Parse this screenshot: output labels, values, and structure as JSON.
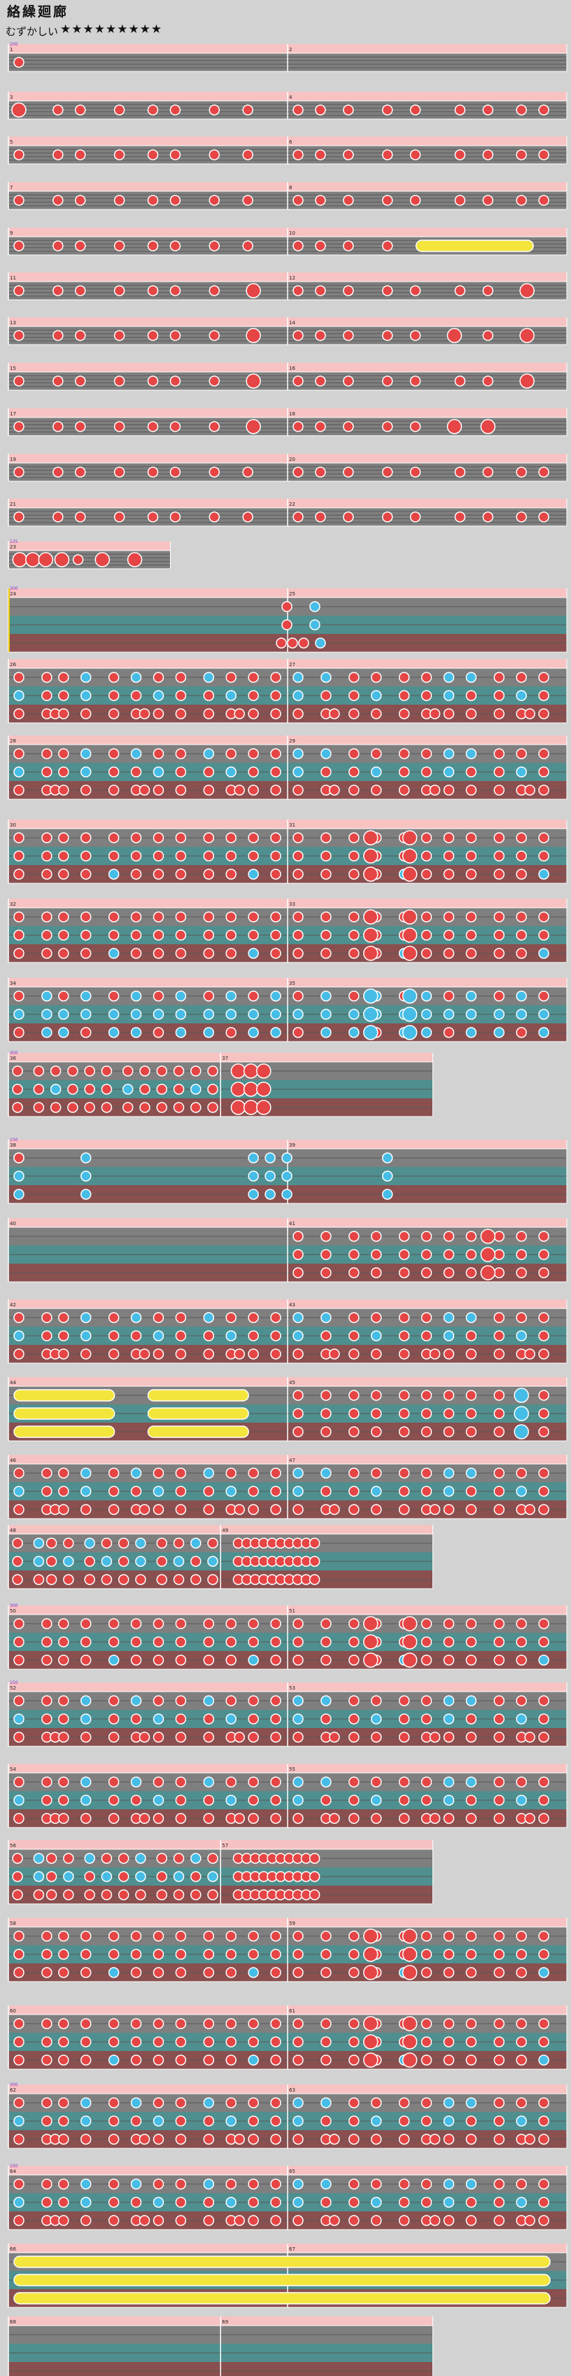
{
  "header": {
    "title": "絡繰廻廊",
    "difficulty_label": "むずかしい",
    "difficulty_stars": "★★★★★★★★★"
  },
  "colors": {
    "page_background": "#d2d2d2",
    "lane_background": "#7f7f7f",
    "lane_divider": "#5a5a5a",
    "pink_band": "#f7c2c2",
    "teal_band": "#4f8f8f",
    "maroon_band": "#8a4f4f",
    "barline": "#ffffff",
    "don_note": "#e64545",
    "ka_note": "#45bde6",
    "drumroll": "#f3e53c",
    "bpm_text": "#8a32c8",
    "gogo_marker": "#e8c800"
  },
  "chart_data": {
    "type": "table",
    "bpm_markers": [
      {
        "row": 0,
        "text": "200"
      },
      {
        "row": 11,
        "text": "125"
      },
      {
        "row": 12,
        "text": "300"
      },
      {
        "row": 18,
        "text": "300"
      },
      {
        "row": 19,
        "text": "150"
      },
      {
        "row": 25,
        "text": "300"
      },
      {
        "row": 26,
        "text": "150"
      },
      {
        "row": 31,
        "text": "300"
      },
      {
        "row": 32,
        "text": "150"
      }
    ],
    "rows": [
      {
        "lanes": 1,
        "measures": [
          "1",
          "2"
        ],
        "notes": [
          [
            0,
            0.01,
            "d"
          ]
        ]
      },
      {
        "lanes": 1,
        "measures": [
          "3",
          "4"
        ],
        "notes": [
          [
            0,
            0.01,
            "D"
          ],
          [
            0,
            0.08,
            "d"
          ],
          [
            0,
            0.12,
            "d"
          ],
          [
            0,
            0.19,
            "d"
          ],
          [
            0,
            0.25,
            "d"
          ],
          [
            0,
            0.29,
            "d"
          ],
          [
            0,
            0.36,
            "d"
          ],
          [
            0,
            0.42,
            "d"
          ],
          [
            0,
            0.51,
            "d"
          ],
          [
            0,
            0.55,
            "d"
          ],
          [
            0,
            0.6,
            "d"
          ],
          [
            0,
            0.67,
            "d"
          ],
          [
            0,
            0.72,
            "d"
          ],
          [
            0,
            0.8,
            "d"
          ],
          [
            0,
            0.85,
            "d"
          ],
          [
            0,
            0.91,
            "d"
          ],
          [
            0,
            0.95,
            "d"
          ]
        ]
      },
      {
        "lanes": 1,
        "measures": [
          "5",
          "6"
        ],
        "notes": [
          [
            0,
            0.01,
            "d"
          ],
          [
            0,
            0.08,
            "d"
          ],
          [
            0,
            0.12,
            "d"
          ],
          [
            0,
            0.19,
            "d"
          ],
          [
            0,
            0.25,
            "d"
          ],
          [
            0,
            0.29,
            "d"
          ],
          [
            0,
            0.36,
            "d"
          ],
          [
            0,
            0.42,
            "d"
          ],
          [
            0,
            0.51,
            "d"
          ],
          [
            0,
            0.55,
            "d"
          ],
          [
            0,
            0.6,
            "d"
          ],
          [
            0,
            0.67,
            "d"
          ],
          [
            0,
            0.72,
            "d"
          ],
          [
            0,
            0.8,
            "d"
          ],
          [
            0,
            0.85,
            "d"
          ],
          [
            0,
            0.91,
            "d"
          ],
          [
            0,
            0.95,
            "d"
          ]
        ]
      },
      {
        "lanes": 1,
        "measures": [
          "7",
          "8"
        ],
        "notes": [
          [
            0,
            0.01,
            "d"
          ],
          [
            0,
            0.08,
            "d"
          ],
          [
            0,
            0.12,
            "d"
          ],
          [
            0,
            0.19,
            "d"
          ],
          [
            0,
            0.25,
            "d"
          ],
          [
            0,
            0.29,
            "d"
          ],
          [
            0,
            0.36,
            "d"
          ],
          [
            0,
            0.42,
            "d"
          ],
          [
            0,
            0.51,
            "d"
          ],
          [
            0,
            0.55,
            "d"
          ],
          [
            0,
            0.6,
            "d"
          ],
          [
            0,
            0.67,
            "d"
          ],
          [
            0,
            0.72,
            "d"
          ],
          [
            0,
            0.8,
            "d"
          ],
          [
            0,
            0.85,
            "d"
          ],
          [
            0,
            0.91,
            "d"
          ],
          [
            0,
            0.95,
            "d"
          ]
        ]
      },
      {
        "lanes": 1,
        "measures": [
          "9",
          "10"
        ],
        "notes": [
          [
            0,
            0.01,
            "d"
          ],
          [
            0,
            0.08,
            "d"
          ],
          [
            0,
            0.12,
            "d"
          ],
          [
            0,
            0.19,
            "d"
          ],
          [
            0,
            0.25,
            "d"
          ],
          [
            0,
            0.29,
            "d"
          ],
          [
            0,
            0.36,
            "d"
          ],
          [
            0,
            0.42,
            "d"
          ],
          [
            0,
            0.51,
            "d"
          ],
          [
            0,
            0.55,
            "d"
          ],
          [
            0,
            0.6,
            "d"
          ],
          [
            0,
            0.67,
            "d"
          ],
          [
            "r",
            0,
            0.73,
            0.94
          ]
        ]
      },
      {
        "lanes": 1,
        "measures": [
          "11",
          "12"
        ],
        "notes": [
          [
            0,
            0.01,
            "d"
          ],
          [
            0,
            0.08,
            "d"
          ],
          [
            0,
            0.12,
            "d"
          ],
          [
            0,
            0.19,
            "d"
          ],
          [
            0,
            0.25,
            "d"
          ],
          [
            0,
            0.29,
            "d"
          ],
          [
            0,
            0.36,
            "d"
          ],
          [
            0,
            0.43,
            "D"
          ],
          [
            0,
            0.51,
            "d"
          ],
          [
            0,
            0.55,
            "d"
          ],
          [
            0,
            0.6,
            "d"
          ],
          [
            0,
            0.67,
            "d"
          ],
          [
            0,
            0.72,
            "d"
          ],
          [
            0,
            0.8,
            "d"
          ],
          [
            0,
            0.85,
            "d"
          ],
          [
            0,
            0.92,
            "D"
          ]
        ]
      },
      {
        "lanes": 1,
        "measures": [
          "13",
          "14"
        ],
        "notes": [
          [
            0,
            0.01,
            "d"
          ],
          [
            0,
            0.08,
            "d"
          ],
          [
            0,
            0.12,
            "d"
          ],
          [
            0,
            0.19,
            "d"
          ],
          [
            0,
            0.25,
            "d"
          ],
          [
            0,
            0.29,
            "d"
          ],
          [
            0,
            0.36,
            "d"
          ],
          [
            0,
            0.43,
            "D"
          ],
          [
            0,
            0.51,
            "d"
          ],
          [
            0,
            0.55,
            "d"
          ],
          [
            0,
            0.6,
            "d"
          ],
          [
            0,
            0.67,
            "d"
          ],
          [
            0,
            0.72,
            "d"
          ],
          [
            0,
            0.79,
            "D"
          ],
          [
            0,
            0.85,
            "d"
          ],
          [
            0,
            0.92,
            "D"
          ]
        ]
      },
      {
        "lanes": 1,
        "measures": [
          "15",
          "16"
        ],
        "notes": [
          [
            0,
            0.01,
            "d"
          ],
          [
            0,
            0.08,
            "d"
          ],
          [
            0,
            0.12,
            "d"
          ],
          [
            0,
            0.19,
            "d"
          ],
          [
            0,
            0.25,
            "d"
          ],
          [
            0,
            0.29,
            "d"
          ],
          [
            0,
            0.36,
            "d"
          ],
          [
            0,
            0.43,
            "D"
          ],
          [
            0,
            0.51,
            "d"
          ],
          [
            0,
            0.55,
            "d"
          ],
          [
            0,
            0.6,
            "d"
          ],
          [
            0,
            0.67,
            "d"
          ],
          [
            0,
            0.72,
            "d"
          ],
          [
            0,
            0.8,
            "d"
          ],
          [
            0,
            0.85,
            "d"
          ],
          [
            0,
            0.92,
            "D"
          ]
        ]
      },
      {
        "lanes": 1,
        "measures": [
          "17",
          "18"
        ],
        "notes": [
          [
            0,
            0.01,
            "d"
          ],
          [
            0,
            0.08,
            "d"
          ],
          [
            0,
            0.12,
            "d"
          ],
          [
            0,
            0.19,
            "d"
          ],
          [
            0,
            0.25,
            "d"
          ],
          [
            0,
            0.29,
            "d"
          ],
          [
            0,
            0.36,
            "d"
          ],
          [
            0,
            0.43,
            "D"
          ],
          [
            0,
            0.51,
            "d"
          ],
          [
            0,
            0.55,
            "d"
          ],
          [
            0,
            0.6,
            "d"
          ],
          [
            0,
            0.67,
            "d"
          ],
          [
            0,
            0.72,
            "d"
          ],
          [
            0,
            0.79,
            "D"
          ],
          [
            0,
            0.85,
            "D"
          ]
        ]
      },
      {
        "lanes": 1,
        "measures": [
          "19",
          "20"
        ],
        "notes": [
          [
            0,
            0.01,
            "d"
          ],
          [
            0,
            0.08,
            "d"
          ],
          [
            0,
            0.12,
            "d"
          ],
          [
            0,
            0.19,
            "d"
          ],
          [
            0,
            0.25,
            "d"
          ],
          [
            0,
            0.29,
            "d"
          ],
          [
            0,
            0.36,
            "d"
          ],
          [
            0,
            0.42,
            "d"
          ],
          [
            0,
            0.51,
            "d"
          ],
          [
            0,
            0.55,
            "d"
          ],
          [
            0,
            0.6,
            "d"
          ],
          [
            0,
            0.67,
            "d"
          ],
          [
            0,
            0.72,
            "d"
          ],
          [
            0,
            0.8,
            "d"
          ],
          [
            0,
            0.85,
            "d"
          ],
          [
            0,
            0.91,
            "d"
          ],
          [
            0,
            0.95,
            "d"
          ]
        ]
      },
      {
        "lanes": 1,
        "measures": [
          "21",
          "22"
        ],
        "notes": [
          [
            0,
            0.01,
            "d"
          ],
          [
            0,
            0.08,
            "d"
          ],
          [
            0,
            0.12,
            "d"
          ],
          [
            0,
            0.19,
            "d"
          ],
          [
            0,
            0.25,
            "d"
          ],
          [
            0,
            0.29,
            "d"
          ],
          [
            0,
            0.36,
            "d"
          ],
          [
            0,
            0.42,
            "d"
          ],
          [
            0,
            0.51,
            "d"
          ],
          [
            0,
            0.55,
            "d"
          ],
          [
            0,
            0.6,
            "d"
          ],
          [
            0,
            0.67,
            "d"
          ],
          [
            0,
            0.72,
            "d"
          ],
          [
            0,
            0.8,
            "d"
          ],
          [
            0,
            0.85,
            "d"
          ],
          [
            0,
            0.91,
            "d"
          ],
          [
            0,
            0.95,
            "d"
          ]
        ]
      },
      {
        "lanes": 1,
        "width": 0.29,
        "measures": [
          "23"
        ],
        "notes": [
          [
            0,
            0.04,
            "D"
          ],
          [
            0,
            0.12,
            "D"
          ],
          [
            0,
            0.2,
            "D"
          ],
          [
            0,
            0.3,
            "D"
          ],
          [
            0,
            0.4,
            "d"
          ],
          [
            0,
            0.55,
            "D"
          ],
          [
            0,
            0.75,
            "D"
          ]
        ]
      },
      {
        "lanes": 3,
        "measures": [
          "24",
          "25"
        ],
        "gogo": true,
        "notes": [
          [
            0,
            0.49,
            "d"
          ],
          [
            0,
            0.54,
            "k"
          ],
          [
            1,
            0.49,
            "d"
          ],
          [
            1,
            0.54,
            "k"
          ],
          [
            2,
            0.48,
            "d"
          ],
          [
            2,
            0.5,
            "d"
          ],
          [
            2,
            0.52,
            "d"
          ],
          [
            2,
            0.55,
            "k"
          ]
        ]
      },
      {
        "lanes": 3,
        "measures": [
          "26",
          "27"
        ],
        "pattern": "A"
      },
      {
        "lanes": 3,
        "measures": [
          "28",
          "29"
        ],
        "pattern": "A"
      },
      {
        "lanes": 3,
        "measures": [
          "30",
          "31"
        ],
        "pattern": "B"
      },
      {
        "lanes": 3,
        "measures": [
          "32",
          "33"
        ],
        "pattern": "B"
      },
      {
        "lanes": 3,
        "measures": [
          "34",
          "35"
        ],
        "pattern": "C"
      },
      {
        "lanes": 3,
        "width": 0.76,
        "measures": [
          "36",
          "37"
        ],
        "pattern": "D"
      },
      {
        "lanes": 3,
        "measures": [
          "38",
          "39"
        ],
        "pattern": "E"
      },
      {
        "lanes": 3,
        "measures": [
          "40",
          "41"
        ],
        "pattern": "F"
      },
      {
        "lanes": 3,
        "measures": [
          "42",
          "43"
        ],
        "pattern": "A"
      },
      {
        "lanes": 3,
        "measures": [
          "44",
          "45"
        ],
        "pattern": "G"
      },
      {
        "lanes": 3,
        "measures": [
          "46",
          "47"
        ],
        "pattern": "A"
      },
      {
        "lanes": 3,
        "width": 0.76,
        "measures": [
          "48",
          "49"
        ],
        "pattern": "H"
      },
      {
        "lanes": 3,
        "measures": [
          "50",
          "51"
        ],
        "pattern": "B"
      },
      {
        "lanes": 3,
        "measures": [
          "52",
          "53"
        ],
        "pattern": "A"
      },
      {
        "lanes": 3,
        "measures": [
          "54",
          "55"
        ],
        "pattern": "A"
      },
      {
        "lanes": 3,
        "width": 0.76,
        "measures": [
          "56",
          "57"
        ],
        "pattern": "H"
      },
      {
        "lanes": 3,
        "measures": [
          "58",
          "59"
        ],
        "pattern": "B"
      },
      {
        "lanes": 3,
        "measures": [
          "60",
          "61"
        ],
        "pattern": "B"
      },
      {
        "lanes": 3,
        "measures": [
          "62",
          "63"
        ],
        "pattern": "A"
      },
      {
        "lanes": 3,
        "measures": [
          "64",
          "65"
        ],
        "pattern": "A"
      },
      {
        "lanes": 3,
        "measures": [
          "66",
          "67"
        ],
        "notes": [
          [
            "r",
            0,
            0.01,
            0.97
          ],
          [
            "r",
            1,
            0.01,
            0.97
          ],
          [
            "r",
            2,
            0.01,
            0.97
          ]
        ]
      },
      {
        "lanes": 3,
        "width": 0.76,
        "measures": [
          "68",
          "69"
        ],
        "notes": []
      }
    ]
  }
}
